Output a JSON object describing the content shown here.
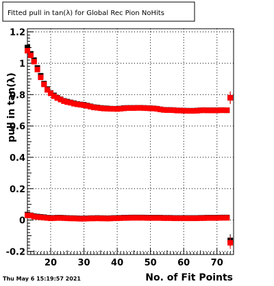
{
  "chart_data": {
    "type": "scatter",
    "title": "Fitted pull in tan(λ) for Global Rec Pion NoHits",
    "xlabel": "No. of Fit Points",
    "ylabel": "pull in tan(λ)",
    "xlim": [
      13,
      75
    ],
    "ylim": [
      -0.22,
      1.22
    ],
    "xticks": [
      20,
      30,
      40,
      50,
      60,
      70
    ],
    "yticks": [
      -0.2,
      0,
      0.2,
      0.4,
      0.6,
      0.8,
      1,
      1.2
    ],
    "ytick_labels": [
      "-0.2",
      "0",
      "0.2",
      "0.4",
      "0.6",
      "0.8",
      "1",
      "1.2"
    ],
    "grid": true,
    "footer": "Thu May  6 15:19:57 2021",
    "series": [
      {
        "marker": "square",
        "color": "#000000",
        "x": [
          13,
          14,
          15,
          16,
          17,
          18,
          19,
          20,
          21,
          22,
          23,
          24,
          25,
          26,
          27,
          28,
          29,
          30,
          31,
          32,
          33,
          34,
          35,
          36,
          37,
          38,
          39,
          40,
          41,
          42,
          43,
          44,
          45,
          46,
          47,
          48,
          49,
          50,
          51,
          52,
          53,
          54,
          55,
          56,
          57,
          58,
          59,
          60,
          61,
          62,
          63,
          64,
          65,
          66,
          67,
          68,
          69,
          70,
          71,
          72,
          73,
          74
        ],
        "y": [
          1.1,
          1.06,
          1.02,
          0.97,
          0.92,
          0.87,
          0.835,
          0.81,
          0.795,
          0.78,
          0.77,
          0.76,
          0.755,
          0.75,
          0.745,
          0.74,
          0.737,
          0.735,
          0.73,
          0.725,
          0.72,
          0.718,
          0.715,
          0.713,
          0.712,
          0.71,
          0.71,
          0.709,
          0.711,
          0.714,
          0.715,
          0.715,
          0.715,
          0.716,
          0.716,
          0.715,
          0.714,
          0.713,
          0.712,
          0.71,
          0.706,
          0.703,
          0.702,
          0.702,
          0.701,
          0.699,
          0.699,
          0.698,
          0.697,
          0.697,
          0.697,
          0.698,
          0.7,
          0.701,
          0.7,
          0.7,
          0.7,
          0.7,
          0.701,
          0.701,
          0.7,
          0.78
        ]
      },
      {
        "marker": "square",
        "color": "#ff0000",
        "x": [
          13,
          14,
          15,
          16,
          17,
          18,
          19,
          20,
          21,
          22,
          23,
          24,
          25,
          26,
          27,
          28,
          29,
          30,
          31,
          32,
          33,
          34,
          35,
          36,
          37,
          38,
          39,
          40,
          41,
          42,
          43,
          44,
          45,
          46,
          47,
          48,
          49,
          50,
          51,
          52,
          53,
          54,
          55,
          56,
          57,
          58,
          59,
          60,
          61,
          62,
          63,
          64,
          65,
          66,
          67,
          68,
          69,
          70,
          71,
          72,
          73,
          74
        ],
        "y": [
          1.08,
          1.05,
          1.01,
          0.96,
          0.91,
          0.865,
          0.83,
          0.808,
          0.79,
          0.778,
          0.768,
          0.758,
          0.752,
          0.748,
          0.742,
          0.738,
          0.735,
          0.732,
          0.728,
          0.723,
          0.718,
          0.716,
          0.713,
          0.711,
          0.71,
          0.709,
          0.709,
          0.708,
          0.71,
          0.712,
          0.714,
          0.714,
          0.714,
          0.715,
          0.715,
          0.714,
          0.713,
          0.712,
          0.711,
          0.709,
          0.705,
          0.702,
          0.701,
          0.701,
          0.7,
          0.698,
          0.698,
          0.697,
          0.696,
          0.696,
          0.696,
          0.697,
          0.699,
          0.7,
          0.699,
          0.699,
          0.699,
          0.699,
          0.7,
          0.7,
          0.7,
          0.78
        ]
      },
      {
        "marker": "square",
        "color": "#000000",
        "x": [
          13,
          14,
          15,
          16,
          17,
          18,
          19,
          20,
          21,
          22,
          23,
          24,
          25,
          26,
          27,
          28,
          29,
          30,
          31,
          32,
          33,
          34,
          35,
          36,
          37,
          38,
          39,
          40,
          41,
          42,
          43,
          44,
          45,
          46,
          47,
          48,
          49,
          50,
          51,
          52,
          53,
          54,
          55,
          56,
          57,
          58,
          59,
          60,
          61,
          62,
          63,
          64,
          65,
          66,
          67,
          68,
          69,
          70,
          71,
          72,
          73,
          74
        ],
        "y": [
          0.035,
          0.03,
          0.025,
          0.022,
          0.02,
          0.018,
          0.015,
          0.013,
          0.014,
          0.015,
          0.015,
          0.014,
          0.013,
          0.012,
          0.012,
          0.011,
          0.01,
          0.01,
          0.011,
          0.012,
          0.012,
          0.013,
          0.012,
          0.012,
          0.011,
          0.012,
          0.013,
          0.013,
          0.014,
          0.015,
          0.015,
          0.016,
          0.016,
          0.016,
          0.016,
          0.016,
          0.015,
          0.015,
          0.015,
          0.015,
          0.015,
          0.014,
          0.014,
          0.014,
          0.013,
          0.013,
          0.013,
          0.013,
          0.013,
          0.013,
          0.013,
          0.013,
          0.014,
          0.014,
          0.015,
          0.015,
          0.015,
          0.015,
          0.016,
          0.016,
          0.016,
          -0.13
        ]
      },
      {
        "marker": "square",
        "color": "#ff0000",
        "x": [
          13,
          14,
          15,
          16,
          17,
          18,
          19,
          20,
          21,
          22,
          23,
          24,
          25,
          26,
          27,
          28,
          29,
          30,
          31,
          32,
          33,
          34,
          35,
          36,
          37,
          38,
          39,
          40,
          41,
          42,
          43,
          44,
          45,
          46,
          47,
          48,
          49,
          50,
          51,
          52,
          53,
          54,
          55,
          56,
          57,
          58,
          59,
          60,
          61,
          62,
          63,
          64,
          65,
          66,
          67,
          68,
          69,
          70,
          71,
          72,
          73,
          74
        ],
        "y": [
          0.03,
          0.028,
          0.022,
          0.019,
          0.017,
          0.015,
          0.013,
          0.011,
          0.012,
          0.013,
          0.013,
          0.012,
          0.011,
          0.01,
          0.01,
          0.009,
          0.008,
          0.008,
          0.009,
          0.01,
          0.01,
          0.011,
          0.01,
          0.01,
          0.009,
          0.01,
          0.011,
          0.011,
          0.012,
          0.013,
          0.013,
          0.014,
          0.014,
          0.014,
          0.014,
          0.014,
          0.013,
          0.013,
          0.013,
          0.013,
          0.013,
          0.012,
          0.012,
          0.012,
          0.011,
          0.011,
          0.011,
          0.011,
          0.011,
          0.011,
          0.011,
          0.011,
          0.012,
          0.012,
          0.013,
          0.013,
          0.013,
          0.013,
          0.014,
          0.014,
          0.014,
          -0.145
        ]
      }
    ]
  }
}
